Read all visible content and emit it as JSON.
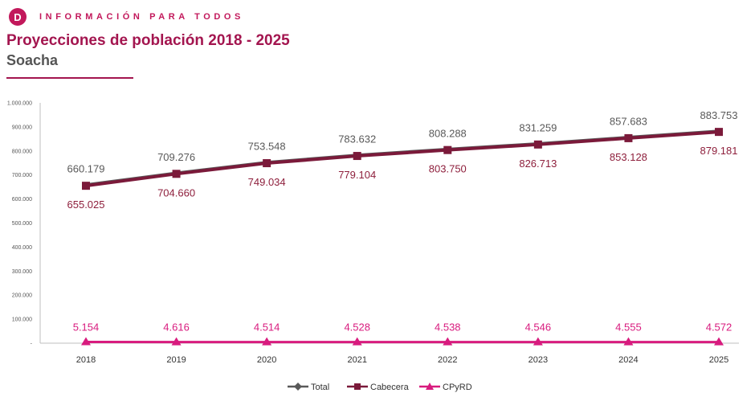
{
  "header": {
    "logo_letter": "D",
    "brand": "INFORMACIÓN PARA TODOS",
    "title": "Proyecciones de población 2018 - 2025",
    "subtitle": "Soacha",
    "accent_color": "#a3154f"
  },
  "chart_data": {
    "type": "line",
    "title": "Proyecciones de población 2018 - 2025",
    "subtitle": "Soacha",
    "xlabel": "",
    "ylabel": "",
    "categories": [
      "2018",
      "2019",
      "2020",
      "2021",
      "2022",
      "2023",
      "2024",
      "2025"
    ],
    "ylim": [
      0,
      1000000
    ],
    "yticks": [
      0,
      100000,
      200000,
      300000,
      400000,
      500000,
      600000,
      700000,
      800000,
      900000,
      1000000
    ],
    "ytick_labels": [
      "-",
      "100.000",
      "200.000",
      "300.000",
      "400.000",
      "500.000",
      "600.000",
      "700.000",
      "800.000",
      "900.000",
      "1.000.000"
    ],
    "grid": false,
    "legend_position": "bottom",
    "series": [
      {
        "name": "Total",
        "color": "#595959",
        "marker": "diamond",
        "values": [
          660179,
          709276,
          753548,
          783632,
          808288,
          831259,
          857683,
          883753
        ],
        "labels": [
          "660.179",
          "709.276",
          "753.548",
          "783.632",
          "808.288",
          "831.259",
          "857.683",
          "883.753"
        ]
      },
      {
        "name": "Cabecera",
        "color": "#7b1a3a",
        "marker": "square",
        "values": [
          655025,
          704660,
          749034,
          779104,
          803750,
          826713,
          853128,
          879181
        ],
        "labels": [
          "655.025",
          "704.660",
          "749.034",
          "779.104",
          "803.750",
          "826.713",
          "853.128",
          "879.181"
        ]
      },
      {
        "name": "CPyRD",
        "color": "#d81b7e",
        "marker": "triangle",
        "values": [
          5154,
          4616,
          4514,
          4528,
          4538,
          4546,
          4555,
          4572
        ],
        "labels": [
          "5.154",
          "4.616",
          "4.514",
          "4.528",
          "4.538",
          "4.546",
          "4.555",
          "4.572"
        ]
      }
    ]
  }
}
